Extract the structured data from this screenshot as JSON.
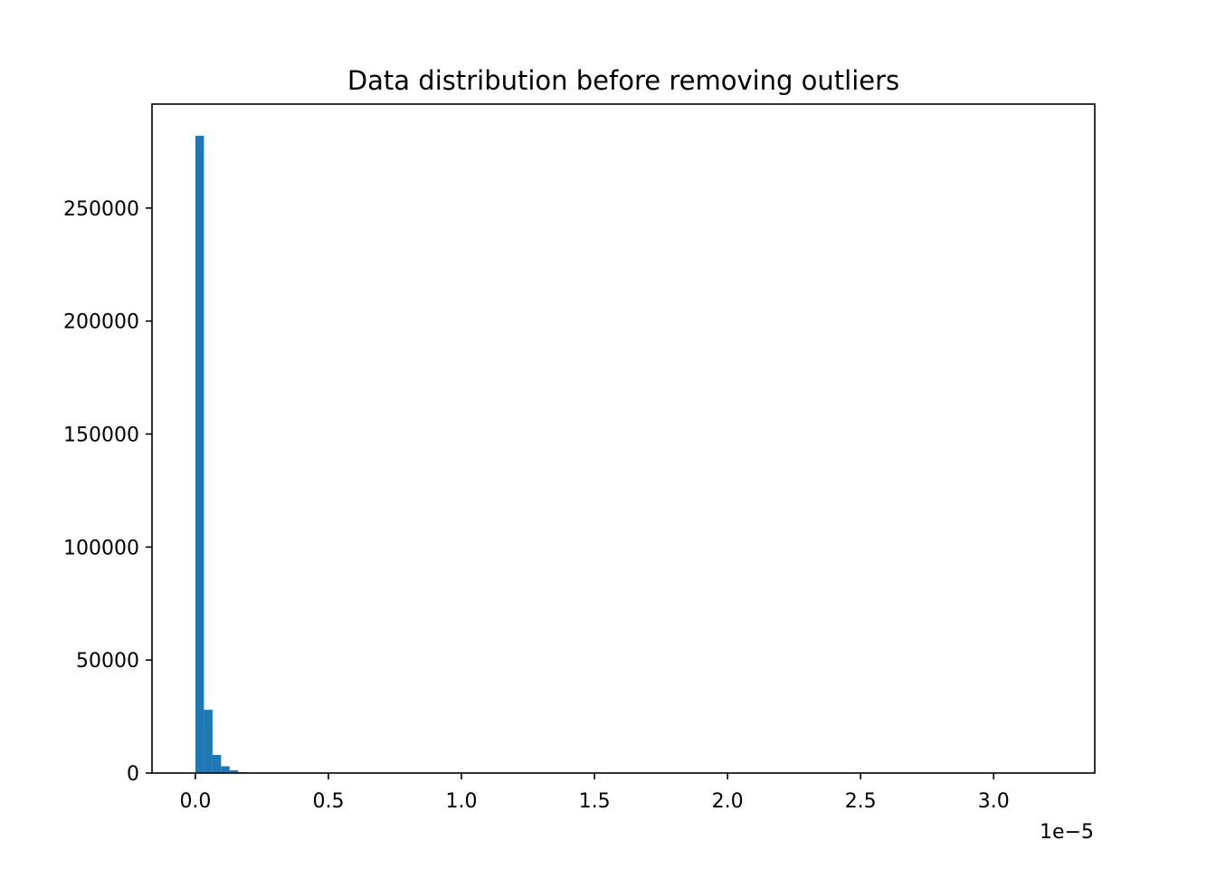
{
  "chart_data": {
    "type": "bar",
    "title": "Data distribution before removing outliers",
    "xlabel": "",
    "ylabel": "",
    "x_offset_text": "1e−5",
    "x_scale_note": "x values shown in units of 1e-5",
    "xlim": [
      -0.163,
      3.38
    ],
    "ylim": [
      0,
      296000
    ],
    "x_ticks": [
      {
        "value": 0.0,
        "label": "0.0"
      },
      {
        "value": 0.5,
        "label": "0.5"
      },
      {
        "value": 1.0,
        "label": "1.0"
      },
      {
        "value": 1.5,
        "label": "1.5"
      },
      {
        "value": 2.0,
        "label": "2.0"
      },
      {
        "value": 2.5,
        "label": "2.5"
      },
      {
        "value": 3.0,
        "label": "3.0"
      }
    ],
    "y_ticks": [
      {
        "value": 0,
        "label": "0"
      },
      {
        "value": 50000,
        "label": "50000"
      },
      {
        "value": 100000,
        "label": "100000"
      },
      {
        "value": 150000,
        "label": "150000"
      },
      {
        "value": 200000,
        "label": "200000"
      },
      {
        "value": 250000,
        "label": "250000"
      }
    ],
    "bin_width": 0.0322,
    "bins_start": [
      0.0,
      0.0322,
      0.0644,
      0.0966,
      0.1288,
      0.161,
      0.1932
    ],
    "values": [
      282000,
      28000,
      8000,
      3000,
      1200,
      400,
      150
    ],
    "bar_color": "#1f77b4",
    "grid": false,
    "legend": "none"
  }
}
